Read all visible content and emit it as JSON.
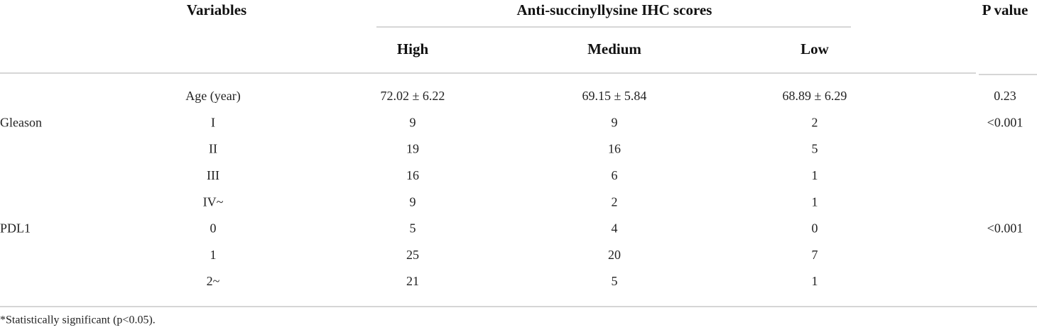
{
  "table": {
    "header": {
      "variables": "Variables",
      "group": "Anti-succinyllysine IHC scores",
      "p_value": "P value",
      "columns": [
        "High",
        "Medium",
        "Low"
      ]
    },
    "rows": [
      {
        "label": "Age (year)",
        "values": [
          "72.02 ± 6.22",
          "69.15 ± 5.84",
          "68.89 ± 6.29"
        ],
        "p": "0.23"
      },
      {
        "group": "Gleason",
        "label": "I",
        "values": [
          "9",
          "9",
          "2"
        ],
        "p": "<0.001"
      },
      {
        "label": "II",
        "values": [
          "19",
          "16",
          "5"
        ]
      },
      {
        "label": "III",
        "values": [
          "16",
          "6",
          "1"
        ]
      },
      {
        "label": "IV~",
        "values": [
          "9",
          "2",
          "1"
        ]
      },
      {
        "group": "PDL1",
        "label": "0",
        "values": [
          "5",
          "4",
          "0"
        ],
        "p": "<0.001"
      },
      {
        "label": "1",
        "values": [
          "25",
          "20",
          "7"
        ]
      },
      {
        "label": "2~",
        "values": [
          "21",
          "5",
          "1"
        ]
      }
    ],
    "footnote": "*Statistically significant (p<0.05)."
  }
}
